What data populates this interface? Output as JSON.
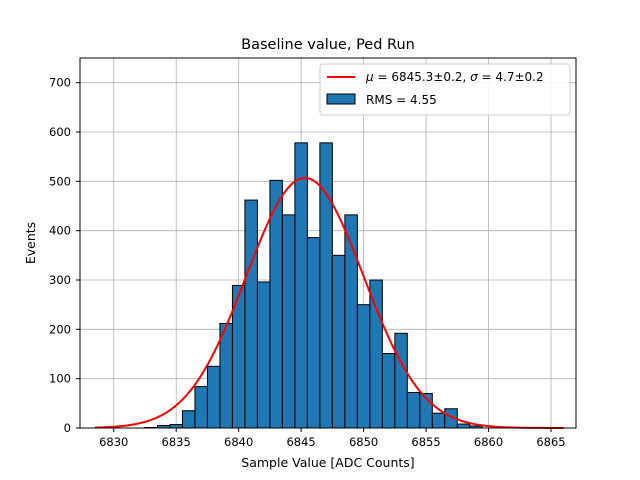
{
  "chart_data": {
    "type": "bar",
    "title": "Baseline value, Ped Run",
    "xlabel": "Sample Value [ADC Counts]",
    "ylabel": "Events",
    "xlim": [
      6827.3,
      6867.0
    ],
    "ylim": [
      0,
      750
    ],
    "xticks": [
      6830,
      6835,
      6840,
      6845,
      6850,
      6855,
      6860,
      6865
    ],
    "yticks": [
      0,
      100,
      200,
      300,
      400,
      500,
      600,
      700
    ],
    "grid": true,
    "legend_position": "top-right",
    "bin_width": 1,
    "bins": [
      {
        "left": 6828.5,
        "value": 0
      },
      {
        "left": 6829.5,
        "value": 0
      },
      {
        "left": 6830.5,
        "value": 0
      },
      {
        "left": 6831.5,
        "value": 0
      },
      {
        "left": 6832.5,
        "value": 1
      },
      {
        "left": 6833.5,
        "value": 5
      },
      {
        "left": 6834.5,
        "value": 7
      },
      {
        "left": 6835.5,
        "value": 35
      },
      {
        "left": 6836.5,
        "value": 84
      },
      {
        "left": 6837.5,
        "value": 125
      },
      {
        "left": 6838.5,
        "value": 212
      },
      {
        "left": 6839.5,
        "value": 289
      },
      {
        "left": 6840.5,
        "value": 462
      },
      {
        "left": 6841.5,
        "value": 296
      },
      {
        "left": 6842.5,
        "value": 502
      },
      {
        "left": 6843.5,
        "value": 432
      },
      {
        "left": 6844.5,
        "value": 578
      },
      {
        "left": 6845.5,
        "value": 386
      },
      {
        "left": 6846.5,
        "value": 578
      },
      {
        "left": 6847.5,
        "value": 350
      },
      {
        "left": 6848.5,
        "value": 432
      },
      {
        "left": 6849.5,
        "value": 250
      },
      {
        "left": 6850.5,
        "value": 300
      },
      {
        "left": 6851.5,
        "value": 151
      },
      {
        "left": 6852.5,
        "value": 192
      },
      {
        "left": 6853.5,
        "value": 72
      },
      {
        "left": 6854.5,
        "value": 70
      },
      {
        "left": 6855.5,
        "value": 30
      },
      {
        "left": 6856.5,
        "value": 39
      },
      {
        "left": 6857.5,
        "value": 8
      },
      {
        "left": 6858.5,
        "value": 4
      },
      {
        "left": 6859.5,
        "value": 0
      },
      {
        "left": 6860.5,
        "value": 0
      },
      {
        "left": 6861.5,
        "value": 0
      },
      {
        "left": 6862.5,
        "value": 0
      },
      {
        "left": 6863.5,
        "value": 0
      },
      {
        "left": 6864.5,
        "value": 0
      }
    ],
    "series": [
      {
        "name": "RMS = 4.55",
        "kind": "histogram",
        "color": "#1f77b4",
        "edge_color": "#000000"
      },
      {
        "name": "μ = 6845.3±0.2, σ = 4.7±0.2",
        "kind": "gaussian_fit",
        "color": "#ff0000",
        "mu": 6845.3,
        "sigma": 4.7,
        "amplitude": 507,
        "x_range": [
          6828.5,
          6866.0
        ]
      }
    ],
    "legend": [
      {
        "label_mu": "μ",
        "label_fit_text": " = 6845.3±0.2, ",
        "label_sigma": "σ",
        "label_sigma_text": " = 4.7±0.2"
      },
      {
        "label": "RMS = 4.55"
      }
    ]
  }
}
